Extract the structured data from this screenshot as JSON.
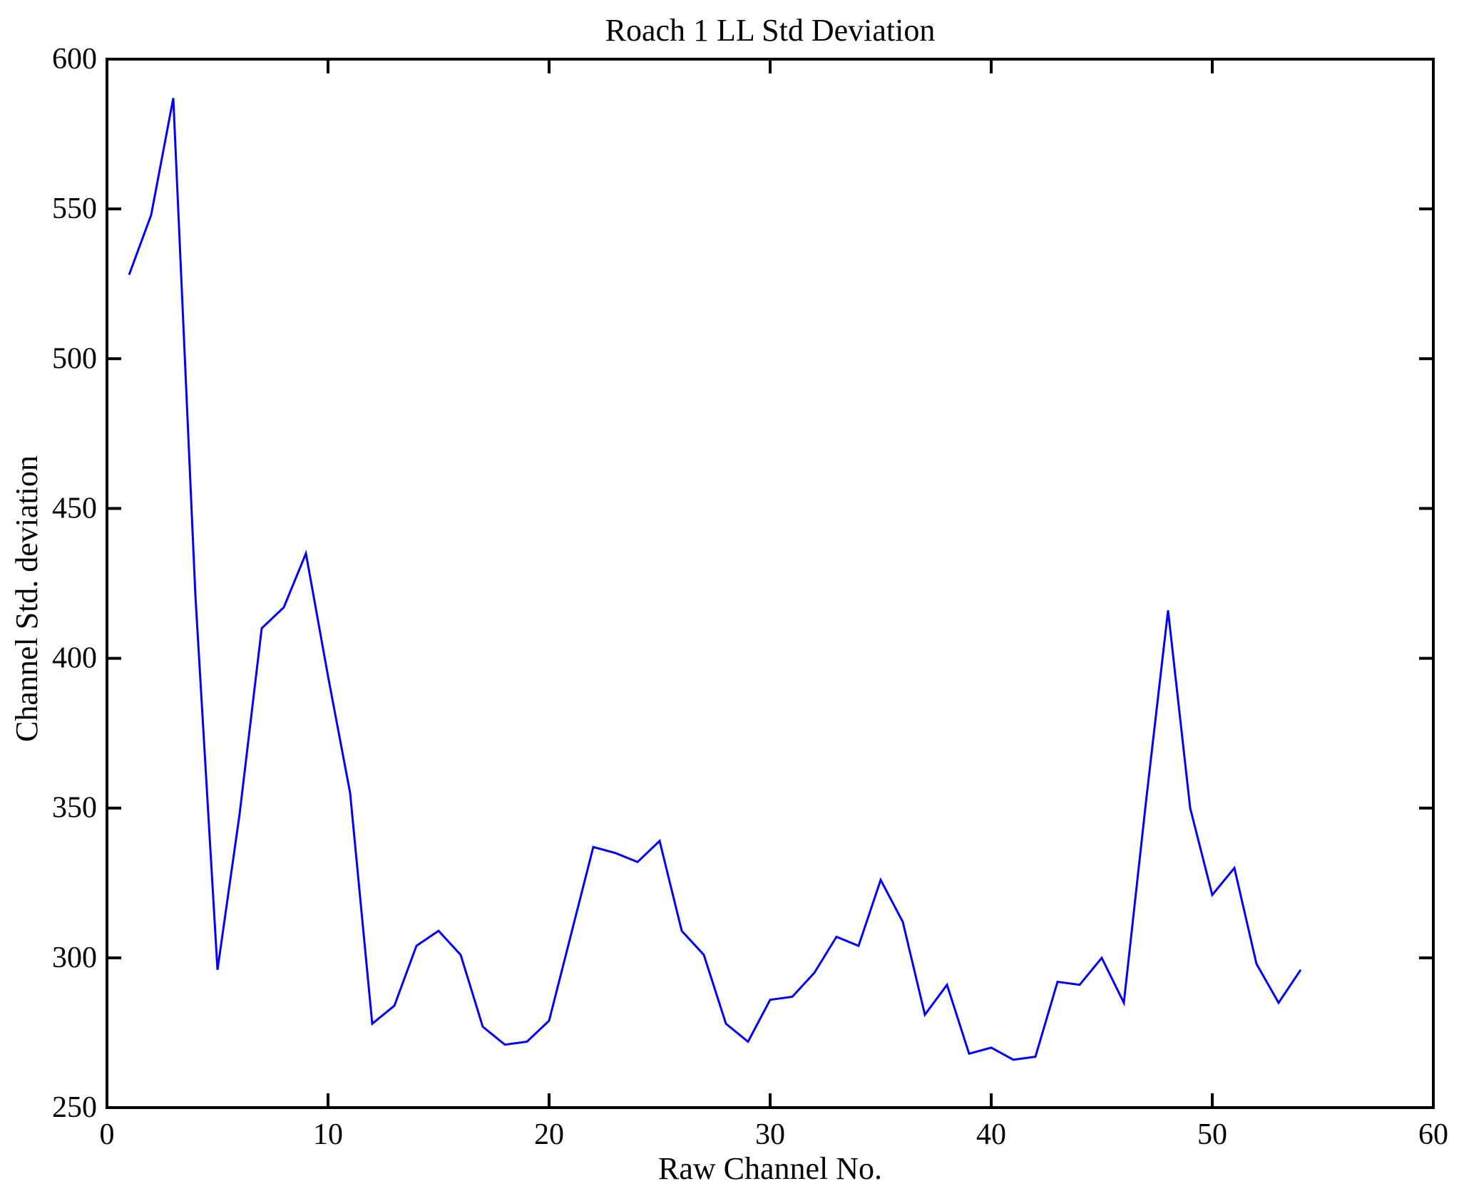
{
  "figure": {
    "background_color": "#FFFFFF",
    "axis_color": "#000000"
  },
  "chart_data": {
    "type": "line",
    "title": "Roach 1 LL Std Deviation",
    "xlabel": "Raw Channel No.",
    "ylabel": "Channel Std. deviation",
    "xlim": [
      0,
      60
    ],
    "ylim": [
      250,
      600
    ],
    "x_ticks": [
      0,
      10,
      20,
      30,
      40,
      50,
      60
    ],
    "y_ticks": [
      250,
      300,
      350,
      400,
      450,
      500,
      550,
      600
    ],
    "grid": false,
    "legend": "none",
    "line_color": "#0000FF",
    "line_width": 3,
    "x": [
      1,
      2,
      3,
      4,
      5,
      6,
      7,
      8,
      9,
      10,
      11,
      12,
      13,
      14,
      15,
      16,
      17,
      18,
      19,
      20,
      21,
      22,
      23,
      24,
      25,
      26,
      27,
      28,
      29,
      30,
      31,
      32,
      33,
      34,
      35,
      36,
      37,
      38,
      39,
      40,
      41,
      42,
      43,
      44,
      45,
      46,
      47,
      48,
      49,
      50,
      51,
      52,
      53,
      54
    ],
    "values": [
      528,
      548,
      587,
      421,
      296,
      348,
      410,
      417,
      435,
      394,
      355,
      278,
      284,
      304,
      309,
      301,
      277,
      271,
      272,
      279,
      308,
      337,
      335,
      332,
      339,
      309,
      301,
      278,
      272,
      286,
      287,
      295,
      307,
      304,
      326,
      312,
      281,
      291,
      268,
      270,
      266,
      267,
      292,
      291,
      300,
      285,
      352,
      416,
      350,
      321,
      330,
      298,
      285,
      296
    ]
  }
}
